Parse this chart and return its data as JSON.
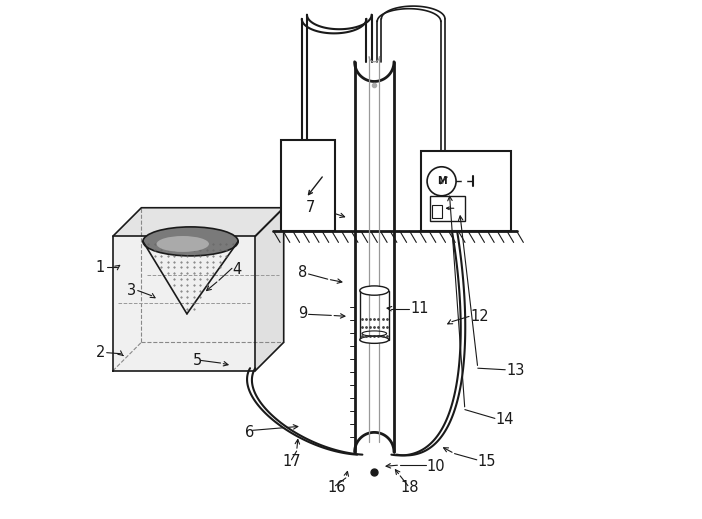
{
  "bg": "#ffffff",
  "lc": "#1a1a1a",
  "fig_w": 7.02,
  "fig_h": 5.19,
  "dpi": 100
}
